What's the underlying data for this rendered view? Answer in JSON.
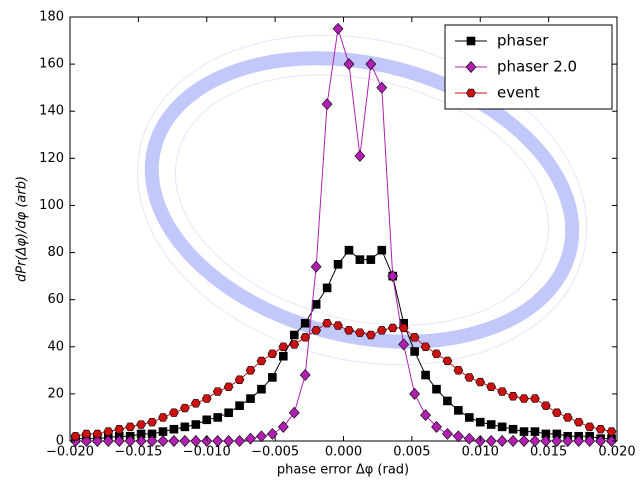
{
  "chart_data": {
    "type": "line",
    "xlabel": "phase error Δφ (rad)",
    "ylabel": "dPr(Δφ)/dφ (arb)",
    "x": [
      -0.0196,
      -0.0188,
      -0.018,
      -0.0172,
      -0.0164,
      -0.0156,
      -0.0148,
      -0.014,
      -0.0132,
      -0.0124,
      -0.0116,
      -0.0108,
      -0.01,
      -0.0092,
      -0.0084,
      -0.0076,
      -0.0068,
      -0.006,
      -0.0052,
      -0.0044,
      -0.0036,
      -0.0028,
      -0.002,
      -0.0012,
      -0.0004,
      0.0004,
      0.0012,
      0.002,
      0.0028,
      0.0036,
      0.0044,
      0.0052,
      0.006,
      0.0068,
      0.0076,
      0.0084,
      0.0092,
      0.01,
      0.0108,
      0.0116,
      0.0124,
      0.0132,
      0.014,
      0.0148,
      0.0156,
      0.0164,
      0.0172,
      0.018,
      0.0188,
      0.0196
    ],
    "series": [
      {
        "name": "phaser",
        "color": "#000000",
        "marker": "square",
        "values": [
          1,
          1,
          1,
          1.5,
          2,
          2,
          3,
          3,
          4,
          5,
          6,
          7,
          9,
          10,
          12,
          15,
          18,
          22,
          27,
          36,
          45,
          50,
          58,
          65,
          75,
          81,
          77,
          77,
          81,
          70,
          50,
          38,
          28,
          22,
          17,
          13,
          10,
          8,
          7,
          6,
          5,
          4,
          4,
          3,
          3,
          2,
          2,
          2,
          1,
          1
        ]
      },
      {
        "name": "phaser 2.0",
        "color": "#b020b0",
        "marker": "diamond",
        "values": [
          0,
          0,
          0,
          0,
          0,
          0,
          0,
          0,
          0,
          0,
          0,
          0,
          0,
          0,
          0,
          0,
          1,
          2,
          3,
          6,
          12,
          28,
          74,
          143,
          175,
          160,
          121,
          160,
          150,
          70,
          41,
          20,
          11,
          6,
          3,
          2,
          1,
          0,
          0,
          0,
          0,
          0,
          0,
          0,
          0,
          0,
          0,
          0,
          0,
          0
        ]
      },
      {
        "name": "event",
        "color": "#cc1111",
        "marker": "hexagon",
        "values": [
          2,
          3,
          3,
          4,
          5,
          6,
          7,
          8,
          10,
          12,
          14,
          16,
          18,
          21,
          23,
          26,
          30,
          34,
          37,
          40,
          41,
          44,
          47,
          50,
          49,
          47,
          46,
          45,
          47,
          48,
          48,
          44,
          40,
          37,
          34,
          30,
          27,
          25,
          23,
          21,
          19,
          18,
          18,
          15,
          12,
          10,
          8,
          6,
          5,
          4
        ]
      }
    ],
    "xlim": [
      -0.02,
      0.02
    ],
    "xticks": [
      {
        "value": -0.02,
        "label": "−0.020"
      },
      {
        "value": -0.015,
        "label": "−0.015"
      },
      {
        "value": -0.01,
        "label": "−0.010"
      },
      {
        "value": -0.005,
        "label": "−0.005"
      },
      {
        "value": 0,
        "label": "0.000"
      },
      {
        "value": 0.005,
        "label": "0.005"
      },
      {
        "value": 0.01,
        "label": "0.010"
      },
      {
        "value": 0.015,
        "label": "0.015"
      },
      {
        "value": 0.02,
        "label": "0.020"
      }
    ],
    "ylim": [
      0,
      180
    ],
    "yticks": [
      0,
      20,
      40,
      60,
      80,
      100,
      120,
      140,
      160,
      180
    ],
    "grid": false,
    "legend": "upper right"
  }
}
